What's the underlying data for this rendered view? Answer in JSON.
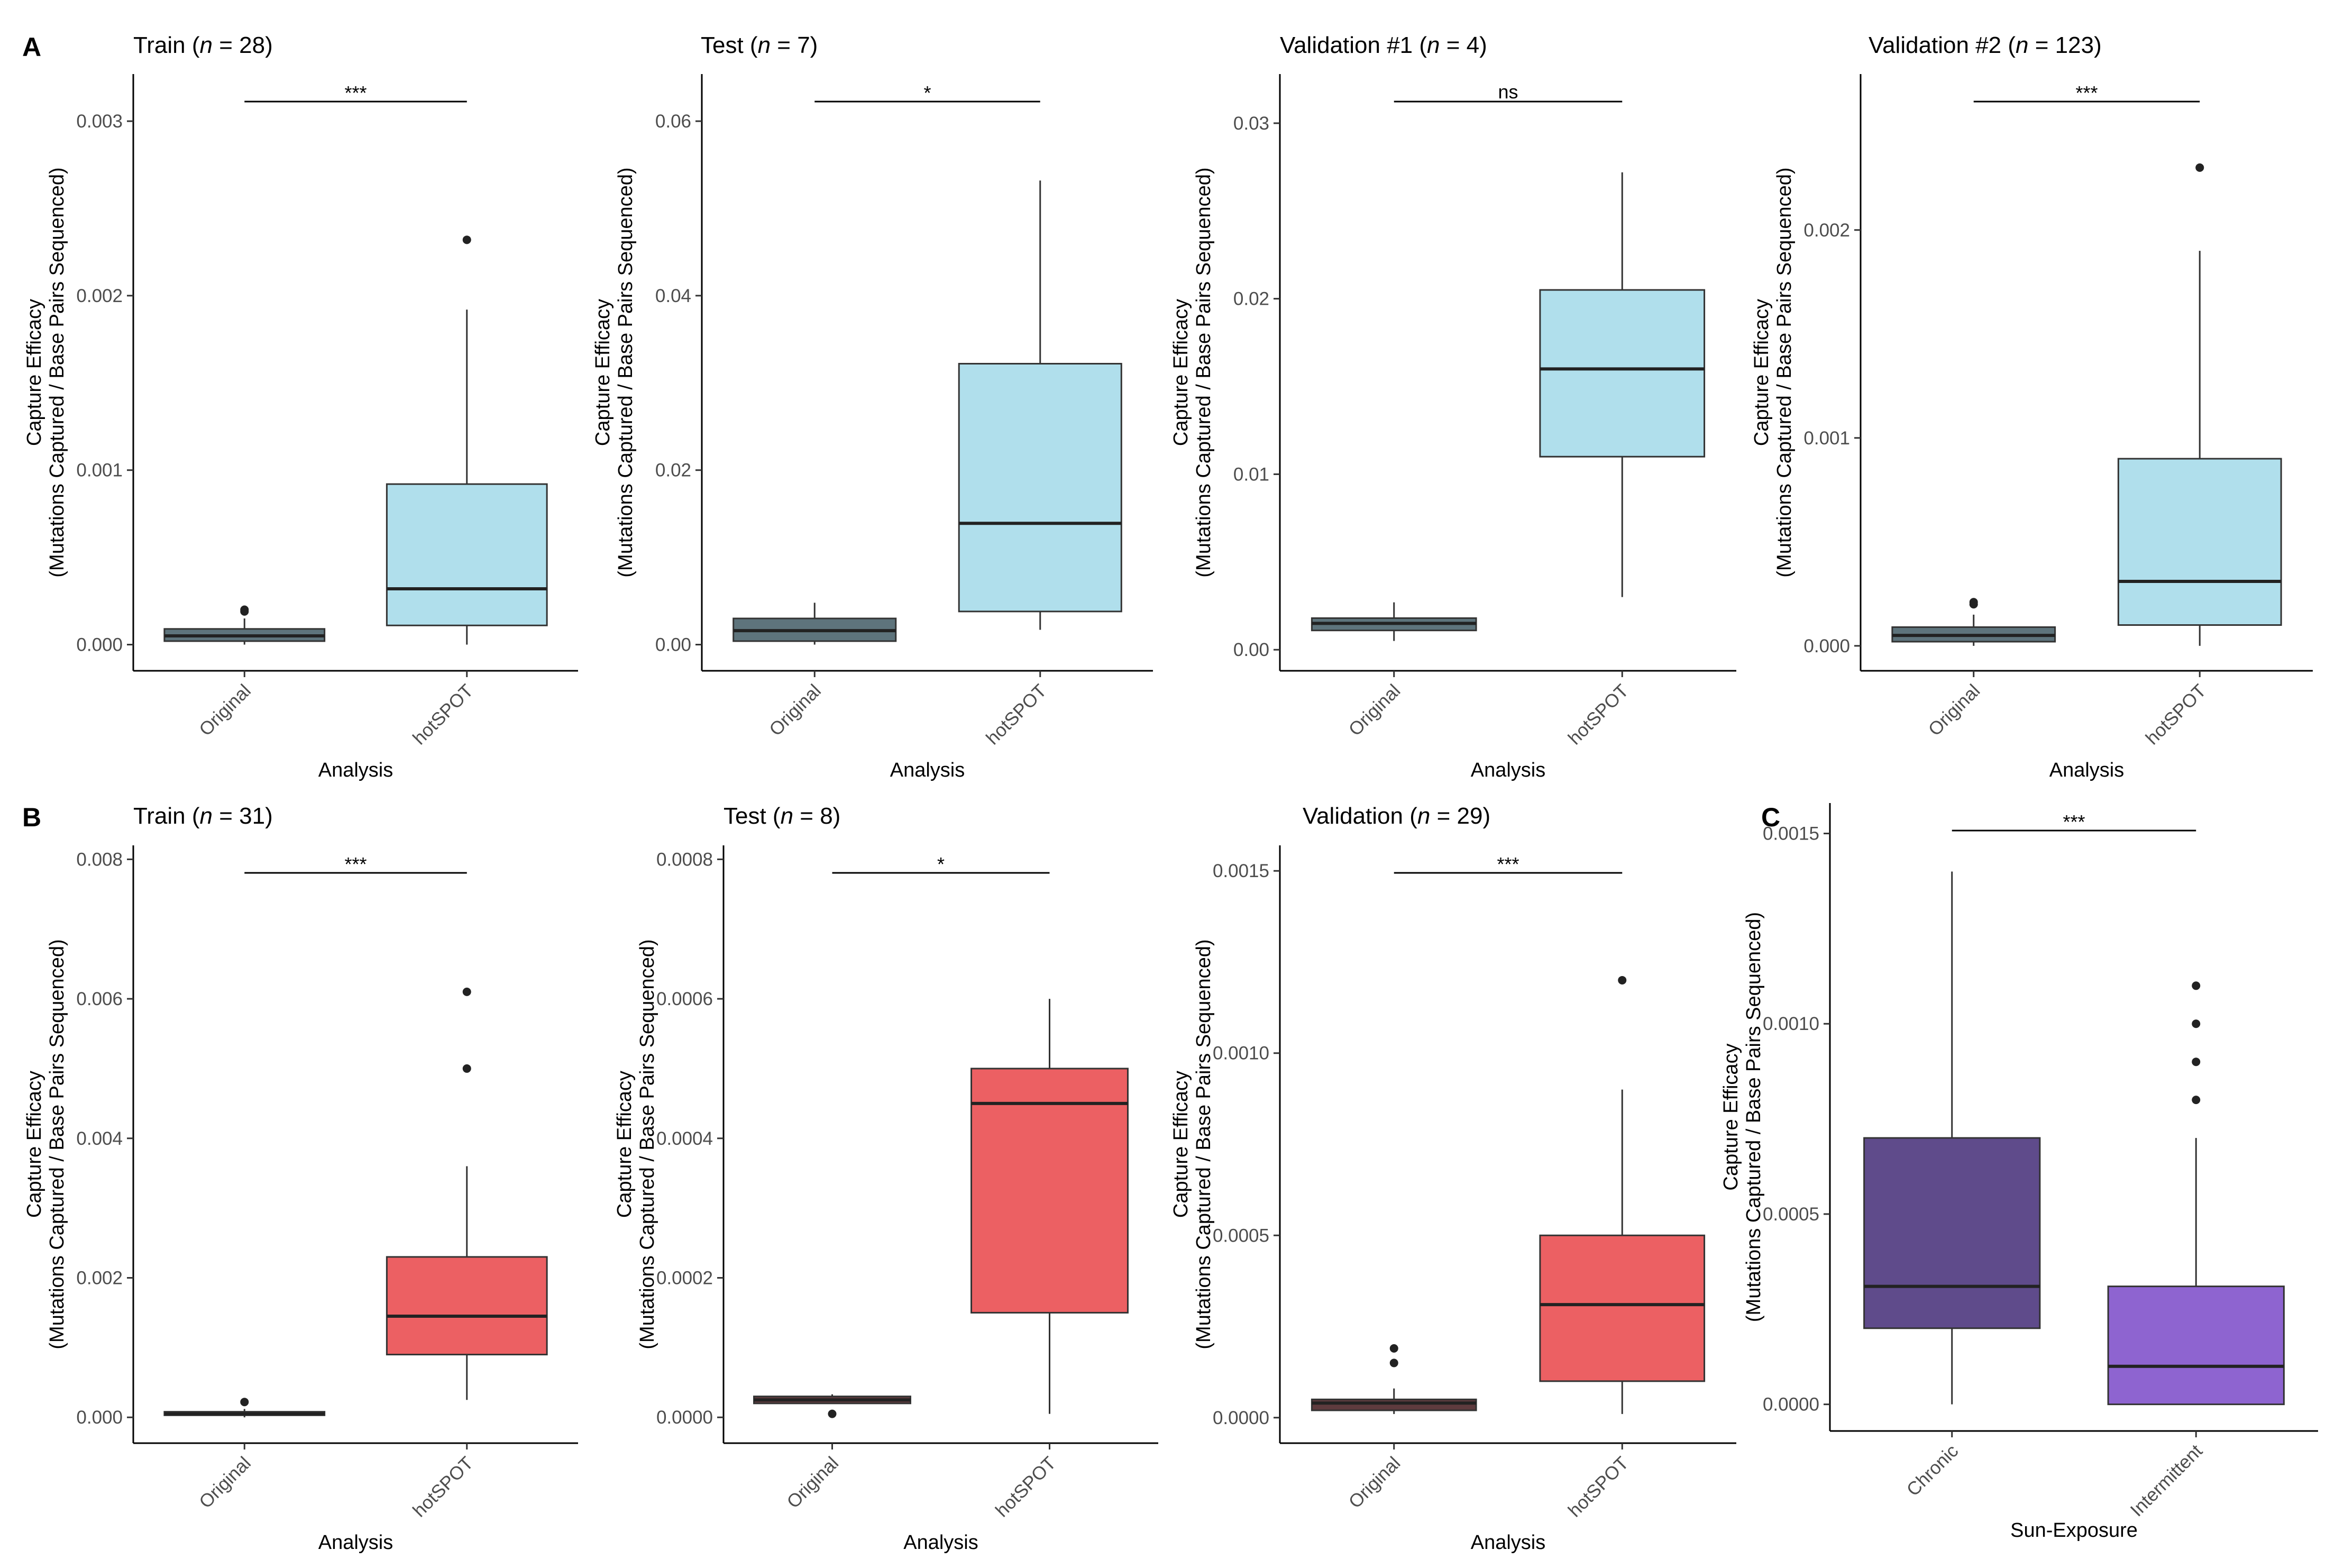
{
  "panel_labels": {
    "a": "A",
    "b": "B",
    "c": "C"
  },
  "chart_data": [
    {
      "panel": "A",
      "type": "box",
      "title_pre": "Train (",
      "title_n": "n",
      "title_post": " = 28)",
      "xlabel": "Analysis",
      "ylabel_line1": "Capture Efficacy",
      "ylabel_line2": "(Mutations Captured / Base Pairs Sequenced)",
      "categories": [
        "Original",
        "hotSPOT"
      ],
      "ylim": [
        -0.00015,
        0.00327
      ],
      "yticks": [
        0,
        0.001,
        0.002,
        0.003
      ],
      "ytick_labels": [
        "0.000",
        "0.001",
        "0.002",
        "0.003"
      ],
      "significance": "***",
      "boxes": [
        {
          "whisker_low": 0.0,
          "q1": 2e-05,
          "median": 5e-05,
          "q3": 9e-05,
          "whisker_high": 0.00015,
          "outliers": [
            0.0002,
            0.00019
          ],
          "color": "#5e747c"
        },
        {
          "whisker_low": 0.0,
          "q1": 0.00011,
          "median": 0.00032,
          "q3": 0.00092,
          "whisker_high": 0.00192,
          "outliers": [
            0.00232
          ],
          "color": "#b0dfec"
        }
      ]
    },
    {
      "panel": "A",
      "type": "box",
      "title_pre": "Test (",
      "title_n": "n",
      "title_post": " = 7)",
      "xlabel": "Analysis",
      "ylabel_line1": "Capture Efficacy",
      "ylabel_line2": "(Mutations Captured / Base Pairs Sequenced)",
      "categories": [
        "Original",
        "hotSPOT"
      ],
      "ylim": [
        -0.003,
        0.0654
      ],
      "yticks": [
        0,
        0.02,
        0.04,
        0.06
      ],
      "ytick_labels": [
        "0.00",
        "0.02",
        "0.04",
        "0.06"
      ],
      "significance": "*",
      "boxes": [
        {
          "whisker_low": 0.0,
          "q1": 0.0004,
          "median": 0.0016,
          "q3": 0.003,
          "whisker_high": 0.0048,
          "outliers": [],
          "color": "#5e747c"
        },
        {
          "whisker_low": 0.0017,
          "q1": 0.0038,
          "median": 0.0139,
          "q3": 0.0322,
          "whisker_high": 0.0532,
          "outliers": [],
          "color": "#b0dfec"
        }
      ]
    },
    {
      "panel": "A",
      "type": "box",
      "title_pre": "Validation #1 (",
      "title_n": "n",
      "title_post": " = 4)",
      "xlabel": "Analysis",
      "ylabel_line1": "Capture Efficacy",
      "ylabel_line2": "(Mutations Captured / Base Pairs Sequenced)",
      "categories": [
        "Original",
        "hotSPOT"
      ],
      "ylim": [
        -0.0012,
        0.0328
      ],
      "yticks": [
        0,
        0.01,
        0.02,
        0.03
      ],
      "ytick_labels": [
        "0.00",
        "0.01",
        "0.02",
        "0.03"
      ],
      "significance": "ns",
      "boxes": [
        {
          "whisker_low": 0.0005,
          "q1": 0.0011,
          "median": 0.0015,
          "q3": 0.0018,
          "whisker_high": 0.0027,
          "outliers": [],
          "color": "#5e747c"
        },
        {
          "whisker_low": 0.003,
          "q1": 0.011,
          "median": 0.016,
          "q3": 0.0205,
          "whisker_high": 0.0272,
          "outliers": [],
          "color": "#b0dfec"
        }
      ]
    },
    {
      "panel": "A",
      "type": "box",
      "title_pre": "Validation #2 (",
      "title_n": "n",
      "title_post": " = 123)",
      "xlabel": "Analysis",
      "ylabel_line1": "Capture Efficacy",
      "ylabel_line2": "(Mutations Captured / Base Pairs Sequenced)",
      "categories": [
        "Original",
        "hotSPOT"
      ],
      "ylim": [
        -0.00012,
        0.00275
      ],
      "yticks": [
        0,
        0.001,
        0.002
      ],
      "ytick_labels": [
        "0.000",
        "0.001",
        "0.002"
      ],
      "significance": "***",
      "boxes": [
        {
          "whisker_low": 0.0,
          "q1": 2e-05,
          "median": 5e-05,
          "q3": 9e-05,
          "whisker_high": 0.00015,
          "outliers": [
            0.00021,
            0.0002
          ],
          "color": "#5e747c"
        },
        {
          "whisker_low": 0.0,
          "q1": 0.0001,
          "median": 0.00031,
          "q3": 0.0009,
          "whisker_high": 0.0019,
          "outliers": [
            0.0023
          ],
          "color": "#b0dfec"
        }
      ]
    },
    {
      "panel": "B",
      "type": "box",
      "title_pre": "Train (",
      "title_n": "n",
      "title_post": " = 31)",
      "xlabel": "Analysis",
      "ylabel_line1": "Capture Efficacy",
      "ylabel_line2": "(Mutations Captured / Base Pairs Sequenced)",
      "categories": [
        "Original",
        "hotSPOT"
      ],
      "ylim": [
        -0.00037,
        0.0082
      ],
      "yticks": [
        0,
        0.002,
        0.004,
        0.006,
        0.008
      ],
      "ytick_labels": [
        "0.000",
        "0.002",
        "0.004",
        "0.006",
        "0.008"
      ],
      "significance": "***",
      "boxes": [
        {
          "whisker_low": 0.0,
          "q1": 3e-05,
          "median": 5e-05,
          "q3": 8e-05,
          "whisker_high": 0.00012,
          "outliers": [
            0.00022
          ],
          "color": "#5e747c"
        },
        {
          "whisker_low": 0.00025,
          "q1": 0.0009,
          "median": 0.00145,
          "q3": 0.0023,
          "whisker_high": 0.0036,
          "outliers": [
            0.0061,
            0.005
          ],
          "color": "#ec6063"
        }
      ]
    },
    {
      "panel": "B",
      "type": "box",
      "title_pre": "Test (",
      "title_n": "n",
      "title_post": " = 8)",
      "xlabel": "Analysis",
      "ylabel_line1": "Capture Efficacy",
      "ylabel_line2": "(Mutations Captured / Base Pairs Sequenced)",
      "categories": [
        "Original",
        "hotSPOT"
      ],
      "ylim": [
        -3.7e-05,
        0.00082
      ],
      "yticks": [
        0,
        0.0002,
        0.0004,
        0.0006,
        0.0008
      ],
      "ytick_labels": [
        "0.0000",
        "0.0002",
        "0.0004",
        "0.0006",
        "0.0008"
      ],
      "significance": "*",
      "boxes": [
        {
          "whisker_low": 2e-05,
          "q1": 2e-05,
          "median": 2.5e-05,
          "q3": 3e-05,
          "whisker_high": 3.3e-05,
          "outliers": [
            5e-06
          ],
          "color": "#5e3b3e"
        },
        {
          "whisker_low": 5e-06,
          "q1": 0.00015,
          "median": 0.00045,
          "q3": 0.0005,
          "whisker_high": 0.0006,
          "outliers": [],
          "color": "#ec6063"
        }
      ]
    },
    {
      "panel": "B",
      "type": "box",
      "title_pre": "Validation (",
      "title_n": "n",
      "title_post": " = 29)",
      "xlabel": "Analysis",
      "ylabel_line1": "Capture Efficacy",
      "ylabel_line2": "(Mutations Captured / Base Pairs Sequenced)",
      "categories": [
        "Original",
        "hotSPOT"
      ],
      "ylim": [
        -7e-05,
        0.00157
      ],
      "yticks": [
        0,
        0.0005,
        0.001,
        0.0015
      ],
      "ytick_labels": [
        "0.0000",
        "0.0005",
        "0.0010",
        "0.0015"
      ],
      "significance": "***",
      "boxes": [
        {
          "whisker_low": 1e-05,
          "q1": 2e-05,
          "median": 4e-05,
          "q3": 5e-05,
          "whisker_high": 8e-05,
          "outliers": [
            0.00015,
            0.00019
          ],
          "color": "#5e3b3e"
        },
        {
          "whisker_low": 1e-05,
          "q1": 0.0001,
          "median": 0.00031,
          "q3": 0.0005,
          "whisker_high": 0.0009,
          "outliers": [
            0.0012
          ],
          "color": "#ec6063"
        }
      ]
    },
    {
      "panel": "C",
      "type": "box",
      "title_pre": "",
      "title_n": "",
      "title_post": "",
      "xlabel": "Sun-Exposure",
      "ylabel_line1": "Capture Efficacy",
      "ylabel_line2": "(Mutations Captured / Base Pairs Sequenced)",
      "categories": [
        "Chronic",
        "Intermittent"
      ],
      "ylim": [
        -7e-05,
        0.00158
      ],
      "yticks": [
        0,
        0.0005,
        0.001,
        0.0015
      ],
      "ytick_labels": [
        "0.0000",
        "0.0005",
        "0.0010",
        "0.0015"
      ],
      "significance": "***",
      "boxes": [
        {
          "whisker_low": 0.0,
          "q1": 0.0002,
          "median": 0.00031,
          "q3": 0.0007,
          "whisker_high": 0.0014,
          "outliers": [],
          "color": "#5f4b8b"
        },
        {
          "whisker_low": 0.0,
          "q1": 0.0,
          "median": 0.0001,
          "q3": 0.00031,
          "whisker_high": 0.0007,
          "outliers": [
            0.0011,
            0.001,
            0.0009,
            0.0008
          ],
          "color": "#8e64d0"
        }
      ]
    }
  ]
}
